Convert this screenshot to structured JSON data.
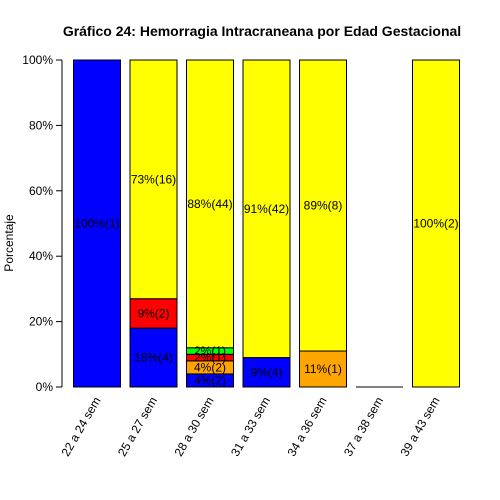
{
  "chart_data": {
    "type": "bar",
    "stacked": true,
    "title": "Gráfico 24: Hemorragia Intracraneana por Edad Gestacional",
    "ylabel": "Porcentaje",
    "xlabel": "",
    "ylim": [
      0,
      100
    ],
    "yticks": [
      0,
      20,
      40,
      60,
      80,
      100
    ],
    "ytick_labels": [
      "0%",
      "20%",
      "40%",
      "60%",
      "80%",
      "100%"
    ],
    "categories": [
      "22 a 24 sem",
      "25 a 27 sem",
      "28 a 30 sem",
      "31 a 33 sem",
      "34 a 36 sem",
      "37 a 38 sem",
      "39 a 43 sem"
    ],
    "stacks": [
      [
        {
          "value": 100,
          "color": "#0000FF",
          "label": "100%(1)"
        }
      ],
      [
        {
          "value": 18,
          "color": "#0000FF",
          "label": "18%(4)"
        },
        {
          "value": 9,
          "color": "#FF0000",
          "label": "9%(2)"
        },
        {
          "value": 73,
          "color": "#FFFF00",
          "label": "73%(16)"
        }
      ],
      [
        {
          "value": 4,
          "color": "#0000FF",
          "label": "4%(2)"
        },
        {
          "value": 4,
          "color": "#FFA500",
          "label": "4%(2)"
        },
        {
          "value": 2,
          "color": "#FF0000",
          "label": "2%(1)"
        },
        {
          "value": 2,
          "color": "#00FF00",
          "label": "2%(1)"
        },
        {
          "value": 88,
          "color": "#FFFF00",
          "label": "88%(44)"
        }
      ],
      [
        {
          "value": 9,
          "color": "#0000FF",
          "label": "9%(4)"
        },
        {
          "value": 91,
          "color": "#FFFF00",
          "label": "91%(42)"
        }
      ],
      [
        {
          "value": 11,
          "color": "#FFA500",
          "label": "11%(1)"
        },
        {
          "value": 89,
          "color": "#FFFF00",
          "label": "89%(8)"
        }
      ],
      [],
      [
        {
          "value": 100,
          "color": "#FFFF00",
          "label": "100%(2)"
        }
      ]
    ]
  }
}
